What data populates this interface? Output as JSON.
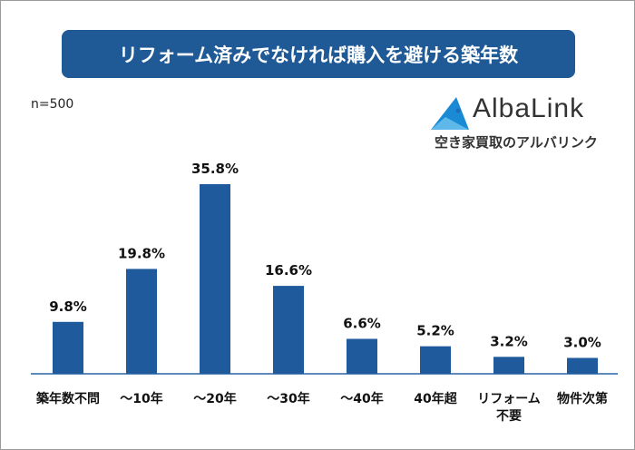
{
  "chart_data": {
    "type": "bar",
    "title": "リフォーム済みでなければ購入を避ける築年数",
    "note": "n=500",
    "categories": [
      "築年数不問",
      "～10年",
      "～20年",
      "～30年",
      "～40年",
      "40年超",
      "リフォーム|不要",
      "物件次第"
    ],
    "values": [
      9.8,
      19.8,
      35.8,
      16.6,
      6.6,
      5.2,
      3.2,
      3.0
    ],
    "data_labels": [
      "9.8%",
      "19.8%",
      "35.8%",
      "16.6%",
      "6.6%",
      "5.2%",
      "3.2%",
      "3.0%"
    ],
    "unit": "%",
    "ylim": [
      0,
      40
    ],
    "grid": false,
    "bar_color": "#1f5a9c"
  },
  "logo": {
    "name": "AlbaLink",
    "tagline": "空き家買取のアルバリンク"
  }
}
